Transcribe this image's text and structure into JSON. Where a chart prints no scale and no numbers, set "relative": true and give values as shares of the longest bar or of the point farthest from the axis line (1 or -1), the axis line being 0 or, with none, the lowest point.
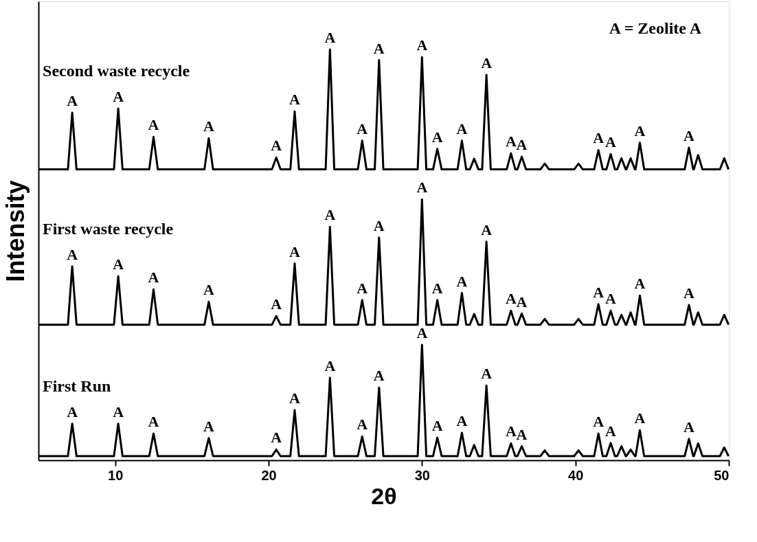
{
  "chart_data": {
    "type": "line",
    "relative": true,
    "xlabel": "2θ",
    "ylabel": "Intensity",
    "xlim": [
      5,
      50
    ],
    "xticks": [
      10,
      20,
      30,
      40,
      50
    ],
    "x": [
      5,
      6.92,
      7.2,
      7.48,
      9.92,
      10.2,
      10.48,
      12.22,
      12.5,
      12.78,
      15.82,
      16.1,
      16.38,
      20.22,
      20.5,
      20.78,
      21.42,
      21.7,
      21.98,
      23.72,
      24.0,
      24.28,
      25.82,
      26.1,
      26.38,
      26.92,
      27.2,
      27.48,
      29.72,
      30.0,
      30.28,
      30.72,
      31.0,
      31.28,
      32.32,
      32.6,
      32.88,
      33.12,
      33.4,
      33.68,
      33.92,
      34.2,
      34.48,
      35.52,
      35.8,
      36.08,
      36.22,
      36.5,
      36.78,
      37.72,
      38.0,
      38.28,
      39.92,
      40.2,
      40.48,
      41.22,
      41.5,
      41.78,
      42.02,
      42.3,
      42.58,
      42.72,
      43.0,
      43.28,
      43.32,
      43.6,
      43.88,
      43.92,
      44.2,
      44.48,
      47.12,
      47.4,
      47.68,
      47.72,
      48.0,
      48.28,
      49.42,
      49.7,
      49.98
    ],
    "series": [
      {
        "name": "Second waste recycle",
        "color": "#000000",
        "values": [
          0.708,
          0.708,
          0.846,
          0.708,
          0.708,
          0.856,
          0.708,
          0.708,
          0.787,
          0.708,
          0.708,
          0.784,
          0.708,
          0.708,
          0.737,
          0.708,
          0.708,
          0.849,
          0.708,
          0.708,
          1.0,
          0.708,
          0.708,
          0.778,
          0.708,
          0.708,
          0.974,
          0.708,
          0.708,
          0.981,
          0.708,
          0.708,
          0.758,
          0.708,
          0.708,
          0.778,
          0.708,
          0.708,
          0.734,
          0.708,
          0.708,
          0.938,
          0.708,
          0.708,
          0.747,
          0.708,
          0.708,
          0.739,
          0.708,
          0.708,
          0.722,
          0.708,
          0.708,
          0.722,
          0.708,
          0.708,
          0.755,
          0.708,
          0.708,
          0.745,
          0.708,
          0.708,
          0.735,
          0.708,
          0.708,
          0.735,
          0.708,
          0.708,
          0.773,
          0.708,
          0.708,
          0.761,
          0.708,
          0.708,
          0.743,
          0.708,
          0.708,
          0.735,
          0.708
        ]
      },
      {
        "name": "First waste recycle",
        "color": "#000000",
        "values": [
          0.33,
          0.33,
          0.472,
          0.33,
          0.33,
          0.448,
          0.33,
          0.33,
          0.416,
          0.33,
          0.33,
          0.386,
          0.33,
          0.33,
          0.351,
          0.33,
          0.33,
          0.479,
          0.33,
          0.33,
          0.568,
          0.33,
          0.33,
          0.39,
          0.33,
          0.33,
          0.542,
          0.33,
          0.33,
          0.635,
          0.33,
          0.33,
          0.39,
          0.33,
          0.33,
          0.407,
          0.33,
          0.33,
          0.356,
          0.33,
          0.33,
          0.532,
          0.33,
          0.33,
          0.364,
          0.33,
          0.33,
          0.357,
          0.33,
          0.33,
          0.344,
          0.33,
          0.33,
          0.344,
          0.33,
          0.33,
          0.38,
          0.33,
          0.33,
          0.364,
          0.33,
          0.33,
          0.354,
          0.33,
          0.33,
          0.36,
          0.33,
          0.33,
          0.401,
          0.33,
          0.33,
          0.378,
          0.33,
          0.33,
          0.36,
          0.33,
          0.33,
          0.354,
          0.33
        ]
      },
      {
        "name": "First Run",
        "color": "#000000",
        "values": [
          0.01,
          0.01,
          0.089,
          0.01,
          0.01,
          0.089,
          0.01,
          0.01,
          0.065,
          0.01,
          0.01,
          0.054,
          0.01,
          0.01,
          0.026,
          0.01,
          0.01,
          0.122,
          0.01,
          0.01,
          0.201,
          0.01,
          0.01,
          0.058,
          0.01,
          0.01,
          0.177,
          0.01,
          0.01,
          0.281,
          0.01,
          0.01,
          0.055,
          0.01,
          0.01,
          0.067,
          0.01,
          0.01,
          0.037,
          0.01,
          0.01,
          0.182,
          0.01,
          0.01,
          0.041,
          0.01,
          0.01,
          0.034,
          0.01,
          0.01,
          0.024,
          0.01,
          0.01,
          0.024,
          0.01,
          0.01,
          0.065,
          0.01,
          0.01,
          0.042,
          0.01,
          0.01,
          0.034,
          0.01,
          0.01,
          0.026,
          0.01,
          0.01,
          0.073,
          0.01,
          0.01,
          0.052,
          0.01,
          0.01,
          0.041,
          0.01,
          0.01,
          0.031,
          0.01
        ]
      }
    ],
    "annotations": [
      "A = Zeolite A",
      {
        "text": "A",
        "x": 7.2,
        "y": 0.846
      },
      {
        "text": "A",
        "x": 10.2,
        "y": 0.856
      },
      {
        "text": "A",
        "x": 12.5,
        "y": 0.787
      },
      {
        "text": "A",
        "x": 16.1,
        "y": 0.784
      },
      {
        "text": "A",
        "x": 20.5,
        "y": 0.737
      },
      {
        "text": "A",
        "x": 21.7,
        "y": 0.849
      },
      {
        "text": "A",
        "x": 24.0,
        "y": 1.0
      },
      {
        "text": "A",
        "x": 26.1,
        "y": 0.778
      },
      {
        "text": "A",
        "x": 27.2,
        "y": 0.974
      },
      {
        "text": "A",
        "x": 30.0,
        "y": 0.981
      },
      {
        "text": "A",
        "x": 31.0,
        "y": 0.758
      },
      {
        "text": "A",
        "x": 32.6,
        "y": 0.778
      },
      {
        "text": "A",
        "x": 34.2,
        "y": 0.938
      },
      {
        "text": "A",
        "x": 35.8,
        "y": 0.747
      },
      {
        "text": "A",
        "x": 36.5,
        "y": 0.739
      },
      {
        "text": "A",
        "x": 41.5,
        "y": 0.755
      },
      {
        "text": "A",
        "x": 42.3,
        "y": 0.745
      },
      {
        "text": "A",
        "x": 44.2,
        "y": 0.773
      },
      {
        "text": "A",
        "x": 47.4,
        "y": 0.761
      },
      {
        "text": "A",
        "x": 7.2,
        "y": 0.472
      },
      {
        "text": "A",
        "x": 10.2,
        "y": 0.448
      },
      {
        "text": "A",
        "x": 12.5,
        "y": 0.416
      },
      {
        "text": "A",
        "x": 16.1,
        "y": 0.386
      },
      {
        "text": "A",
        "x": 20.5,
        "y": 0.351
      },
      {
        "text": "A",
        "x": 21.7,
        "y": 0.479
      },
      {
        "text": "A",
        "x": 24.0,
        "y": 0.568
      },
      {
        "text": "A",
        "x": 26.1,
        "y": 0.39
      },
      {
        "text": "A",
        "x": 27.2,
        "y": 0.542
      },
      {
        "text": "A",
        "x": 30.0,
        "y": 0.635
      },
      {
        "text": "A",
        "x": 31.0,
        "y": 0.39
      },
      {
        "text": "A",
        "x": 32.6,
        "y": 0.407
      },
      {
        "text": "A",
        "x": 34.2,
        "y": 0.532
      },
      {
        "text": "A",
        "x": 35.8,
        "y": 0.364
      },
      {
        "text": "A",
        "x": 36.5,
        "y": 0.357
      },
      {
        "text": "A",
        "x": 41.5,
        "y": 0.38
      },
      {
        "text": "A",
        "x": 42.3,
        "y": 0.364
      },
      {
        "text": "A",
        "x": 44.2,
        "y": 0.401
      },
      {
        "text": "A",
        "x": 47.4,
        "y": 0.378
      },
      {
        "text": "A",
        "x": 7.2,
        "y": 0.089
      },
      {
        "text": "A",
        "x": 10.2,
        "y": 0.089
      },
      {
        "text": "A",
        "x": 12.5,
        "y": 0.065
      },
      {
        "text": "A",
        "x": 16.1,
        "y": 0.054
      },
      {
        "text": "A",
        "x": 20.5,
        "y": 0.026
      },
      {
        "text": "A",
        "x": 21.7,
        "y": 0.122
      },
      {
        "text": "A",
        "x": 24.0,
        "y": 0.201
      },
      {
        "text": "A",
        "x": 26.1,
        "y": 0.058
      },
      {
        "text": "A",
        "x": 27.2,
        "y": 0.177
      },
      {
        "text": "A",
        "x": 30.0,
        "y": 0.281
      },
      {
        "text": "A",
        "x": 31.0,
        "y": 0.055
      },
      {
        "text": "A",
        "x": 32.6,
        "y": 0.067
      },
      {
        "text": "A",
        "x": 34.2,
        "y": 0.182
      },
      {
        "text": "A",
        "x": 35.8,
        "y": 0.041
      },
      {
        "text": "A",
        "x": 36.5,
        "y": 0.034
      },
      {
        "text": "A",
        "x": 41.5,
        "y": 0.065
      },
      {
        "text": "A",
        "x": 42.3,
        "y": 0.042
      },
      {
        "text": "A",
        "x": 44.2,
        "y": 0.073
      },
      {
        "text": "A",
        "x": 47.4,
        "y": 0.052
      }
    ]
  }
}
